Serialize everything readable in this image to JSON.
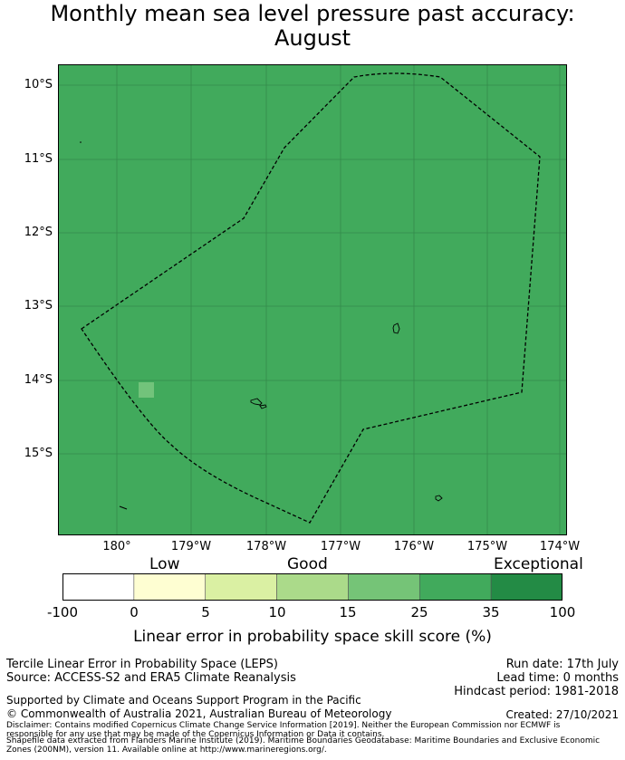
{
  "title_line1": "Monthly mean sea level pressure past accuracy:",
  "title_line2": "August",
  "map": {
    "background_color": "#41aa5c",
    "highlight_cell_color": "#72c37b",
    "lat_labels": [
      "10°S",
      "11°S",
      "12°S",
      "13°S",
      "14°S",
      "15°S"
    ],
    "lon_labels": [
      "180°",
      "179°W",
      "178°W",
      "177°W",
      "176°W",
      "175°W",
      "174°W"
    ]
  },
  "colorbar": {
    "categories": [
      "Low",
      "Good",
      "Exceptional"
    ],
    "ticks": [
      "-100",
      "0",
      "5",
      "10",
      "15",
      "25",
      "35",
      "100"
    ],
    "colors": [
      "#ffffff",
      "#fefed2",
      "#daf0a3",
      "#abda8a",
      "#75c477",
      "#41aa5c",
      "#238b45"
    ],
    "title": "Linear error in probability space skill score (%)"
  },
  "footer": {
    "left_line1": "Tercile Linear Error in Probability Space (LEPS)",
    "left_line2": "Source: ACCESS-S2 and ERA5 Climate Reanalysis",
    "run_date": "Run date: 17th July",
    "lead_time": "Lead time: 0 months",
    "hindcast": "Hindcast period: 1981-2018",
    "supported": "Supported by Climate and Oceans Support Program in the Pacific",
    "copyright": "© Commonwealth of Australia 2021, Australian Bureau of Meteorology",
    "created": "Created: 27/10/2021",
    "disclaimer1": "Disclaimer: Contains modified Copernicus Climate Change Service Information [2019]. Neither the European Commission nor ECMWF is",
    "disclaimer2": "responsible for any use that may be made of the Copernicus Information or Data it contains.",
    "disclaimer3": "Shapefile data extracted from Flanders Marine Institute (2019). Maritime Boundaries Geodatabase: Maritime Boundaries and Exclusive Economic",
    "disclaimer4": "Zones (200NM), version 11. Available online at http://www.marineregions.org/."
  }
}
